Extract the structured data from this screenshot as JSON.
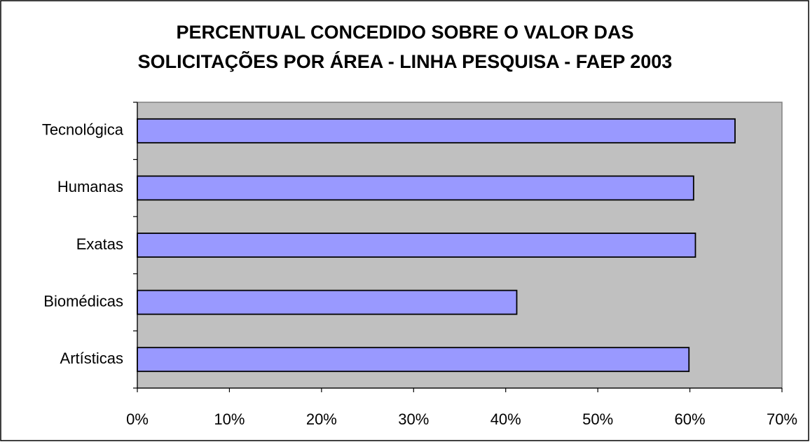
{
  "chart_data": {
    "type": "bar",
    "orientation": "horizontal",
    "title": [
      "PERCENTUAL CONCEDIDO SOBRE O VALOR DAS",
      "SOLICITAÇÕES POR ÁREA - LINHA PESQUISA - FAEP 2003"
    ],
    "categories": [
      "Tecnológica",
      "Humanas",
      "Exatas",
      "Biomédicas",
      "Artísticas"
    ],
    "values": [
      64.9,
      60.4,
      60.6,
      41.2,
      59.9
    ],
    "color": "#9999ff",
    "xlim": [
      0,
      70
    ],
    "xticks": [
      {
        "value": 0,
        "label": "0%"
      },
      {
        "value": 10,
        "label": "10%"
      },
      {
        "value": 20,
        "label": "20%"
      },
      {
        "value": 30,
        "label": "30%"
      },
      {
        "value": 40,
        "label": "40%"
      },
      {
        "value": 50,
        "label": "50%"
      },
      {
        "value": 60,
        "label": "60%"
      },
      {
        "value": 70,
        "label": "70%"
      }
    ],
    "grid": false
  }
}
